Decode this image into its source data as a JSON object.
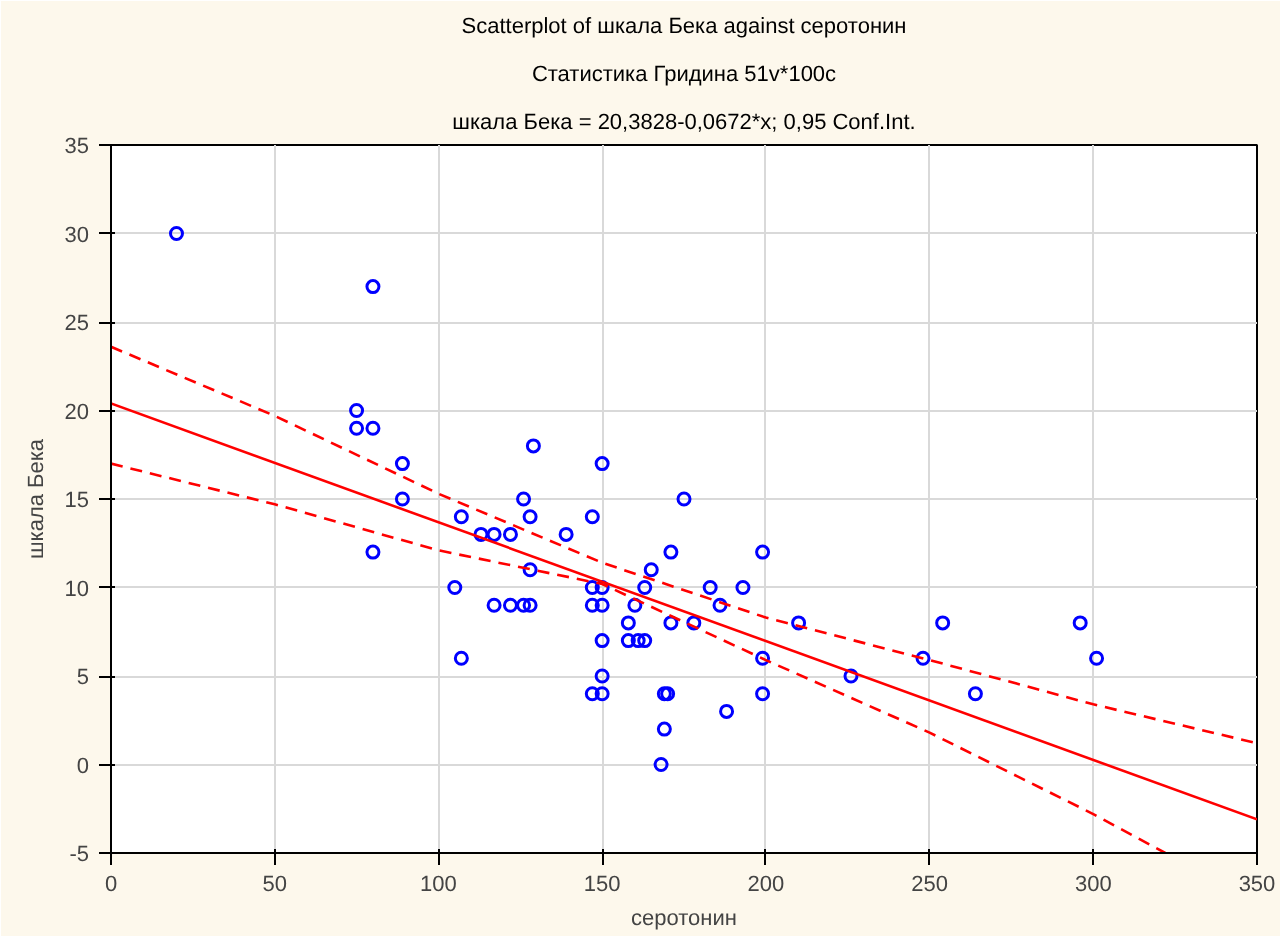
{
  "chart_data": {
    "type": "scatter",
    "title": "Scatterplot of шкала Бека against серотонин",
    "subtitle": "Статистика Гридина 51v*100c",
    "annotations": [
      "шкала Бека = 20,3828-0,0672*x; 0,95 Conf.Int."
    ],
    "xlabel": "серотонин",
    "ylabel": "шкала Бека",
    "xlim": [
      0,
      350
    ],
    "xticks": [
      0,
      50,
      100,
      150,
      200,
      250,
      300,
      350
    ],
    "ylim": [
      -5,
      35
    ],
    "yticks": [
      -5,
      0,
      5,
      10,
      15,
      20,
      25,
      30,
      35
    ],
    "grid": true,
    "series": [
      {
        "color": "#0000ff",
        "marker": "circle",
        "x": [
          20,
          80,
          75,
          75,
          80,
          89,
          89,
          80,
          107,
          113,
          117,
          122,
          129,
          126,
          128,
          139,
          147,
          150,
          128,
          105,
          117,
          122,
          126,
          128,
          107,
          147,
          150,
          147,
          150,
          150,
          150,
          147,
          150,
          165,
          163,
          160,
          158,
          158,
          161,
          163,
          171,
          175,
          183,
          186,
          193,
          199,
          171,
          178,
          199,
          199,
          188,
          169,
          170,
          169,
          168,
          210,
          226,
          248,
          254,
          264,
          296,
          301
        ],
        "values": [
          30,
          27,
          20,
          19,
          19,
          17,
          15,
          12,
          14,
          13,
          13,
          13,
          18,
          15,
          14,
          13,
          14,
          17,
          11,
          10,
          9,
          9,
          9,
          9,
          6,
          10,
          10,
          9,
          9,
          7,
          5,
          4,
          4,
          11,
          10,
          9,
          8,
          7,
          7,
          7,
          12,
          15,
          10,
          9,
          10,
          12,
          8,
          8,
          6,
          4,
          3,
          4,
          4,
          2,
          0,
          8,
          5,
          6,
          8,
          4,
          8,
          6
        ]
      },
      {
        "type": "line",
        "color": "#ff0000",
        "line_style": "solid",
        "x": [
          0,
          350
        ],
        "values": [
          20.4,
          -3.1
        ]
      },
      {
        "type": "line",
        "color": "#ff0000",
        "line_style": "dashed",
        "x": [
          0,
          50,
          100,
          150,
          200,
          250,
          300,
          350
        ],
        "values": [
          23.6,
          19.7,
          15.3,
          11.4,
          8.3,
          5.9,
          3.4,
          1.2
        ]
      },
      {
        "type": "line",
        "color": "#ff0000",
        "line_style": "dashed",
        "x": [
          0,
          50,
          100,
          150,
          200,
          250,
          300,
          322
        ],
        "values": [
          17.0,
          14.7,
          12.1,
          10.2,
          5.9,
          1.8,
          -2.8,
          -5
        ]
      }
    ]
  }
}
